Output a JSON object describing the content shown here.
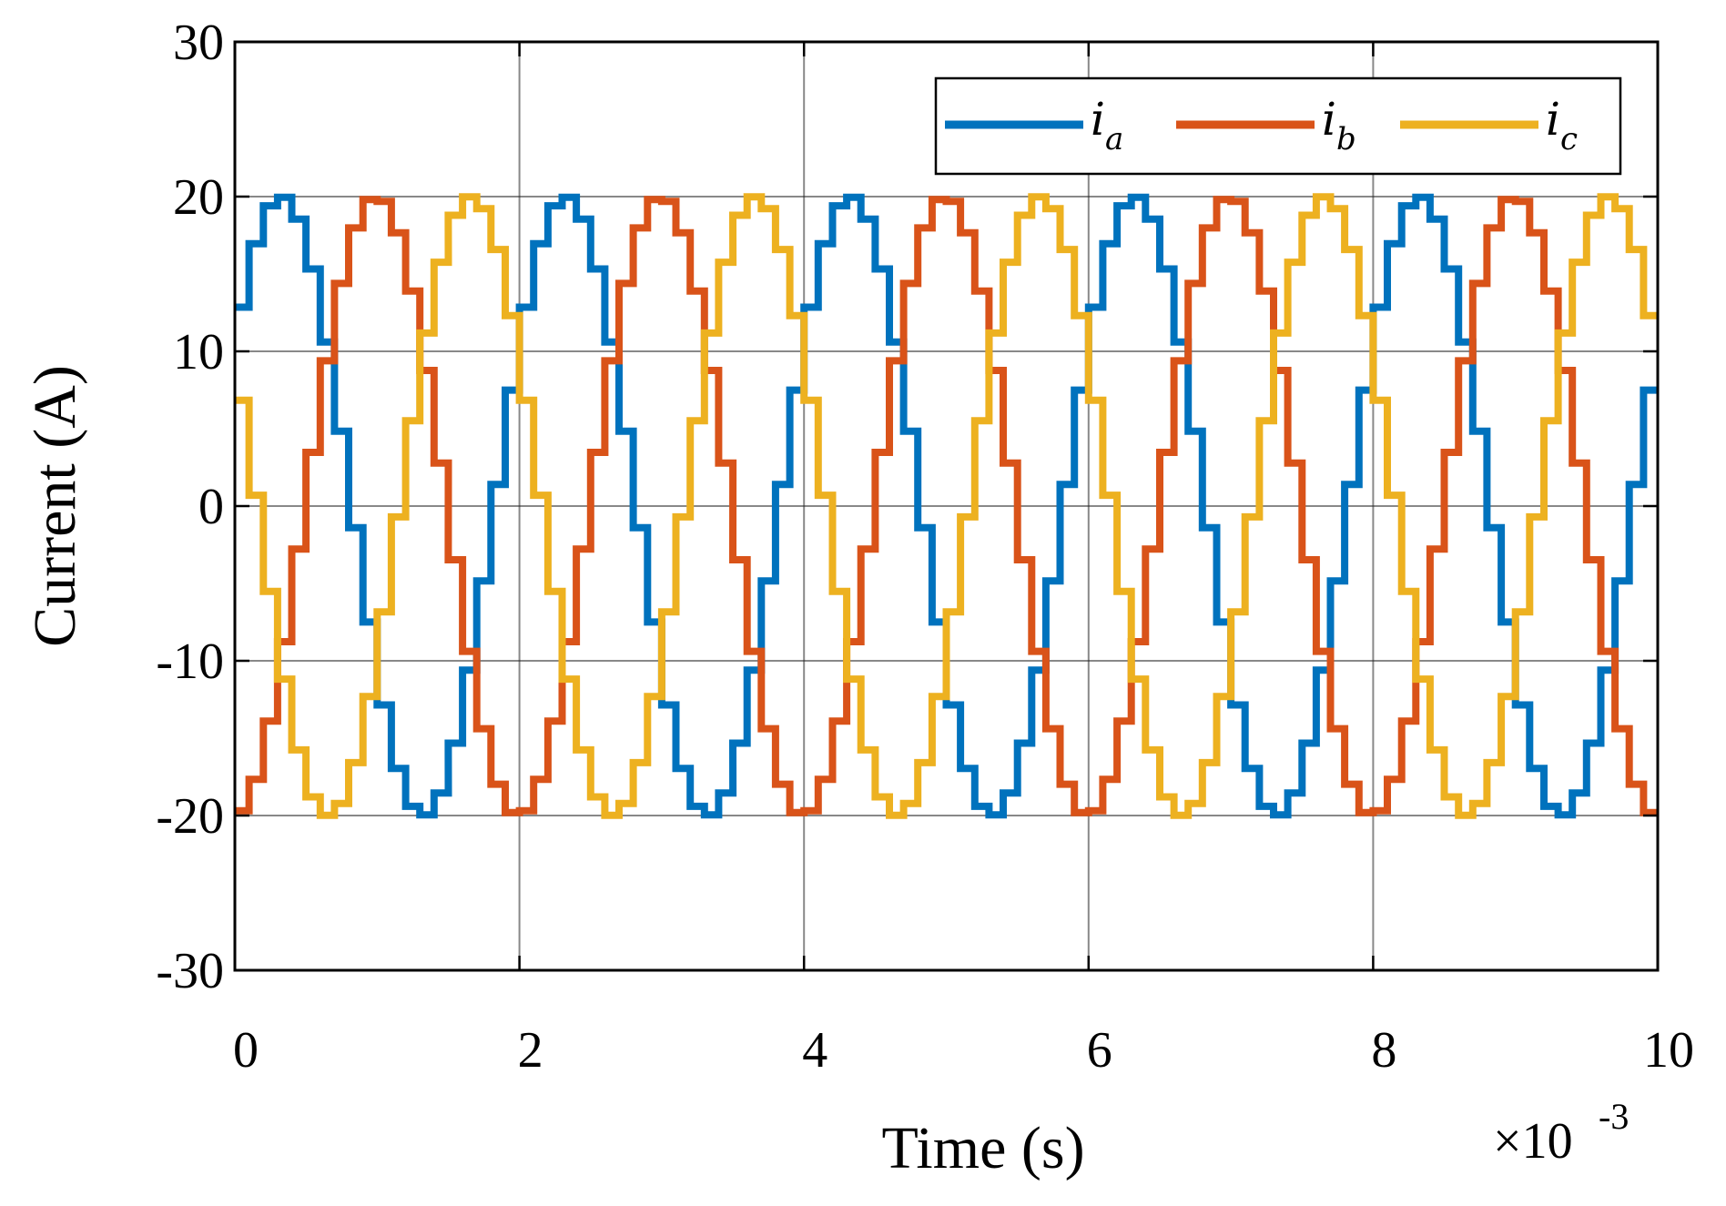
{
  "chart_data": {
    "type": "line",
    "title": "",
    "xlabel": "Time (s)",
    "ylabel": "Current (A)",
    "x_multiplier_label": "×10",
    "x_multiplier_exponent": "-3",
    "xlim": [
      0,
      10
    ],
    "ylim": [
      -30,
      30
    ],
    "xticks": [
      0,
      2,
      4,
      6,
      8,
      10
    ],
    "xtick_labels": [
      "0",
      "2",
      "4",
      "6",
      "8",
      "10"
    ],
    "yticks": [
      30,
      20,
      10,
      0,
      -10,
      -20,
      -30
    ],
    "ytick_labels": [
      "30",
      "20",
      "10",
      "0",
      "-10",
      "-20",
      "-30"
    ],
    "grid": true,
    "legend_position": "top-right",
    "legend_orientation": "horizontal",
    "waveform": {
      "shape": "staircase sinusoid",
      "amplitude_A": 20,
      "period_ms": 2.0,
      "step_ms": 0.1
    },
    "series": [
      {
        "name": "i",
        "subscript": "a",
        "color": "#0072BD",
        "phase_deg": 40
      },
      {
        "name": "i",
        "subscript": "b",
        "color": "#D95319",
        "phase_deg": -80
      },
      {
        "name": "i",
        "subscript": "c",
        "color": "#EDB120",
        "phase_deg": 160
      }
    ]
  }
}
